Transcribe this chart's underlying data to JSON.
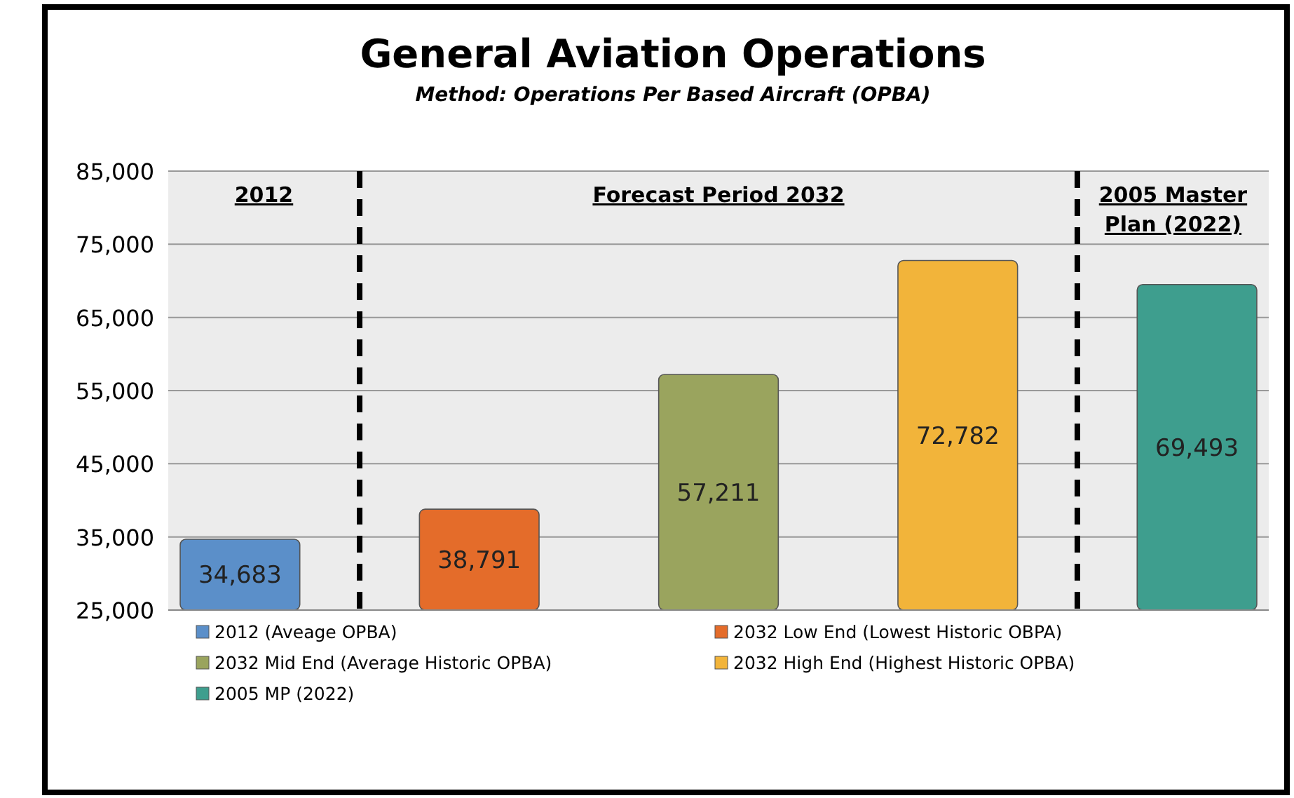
{
  "chart_data": {
    "type": "bar",
    "title": "General Aviation Operations",
    "subtitle": "Method: Operations Per Based Aircraft (OPBA)",
    "categories": [
      null,
      null,
      null,
      null,
      null
    ],
    "series": [
      {
        "name": "2012 (Aveage OPBA)",
        "color": "#5b8fc9",
        "values": [
          34683,
          null,
          null,
          null,
          null
        ],
        "value_labels": [
          "34,683",
          null,
          null,
          null,
          null
        ]
      },
      {
        "name": "2032 Low End (Lowest Historic OBPA)",
        "color": "#e46c2a",
        "values": [
          null,
          38791,
          null,
          null,
          null
        ],
        "value_labels": [
          null,
          "38,791",
          null,
          null,
          null
        ]
      },
      {
        "name": "2032 Mid End (Average Historic OPBA)",
        "color": "#9aa45e",
        "values": [
          null,
          null,
          57211,
          null,
          null
        ],
        "value_labels": [
          null,
          null,
          "57,211",
          null,
          null
        ]
      },
      {
        "name": "2032 High End (Highest Historic OPBA)",
        "color": "#f2b43a",
        "values": [
          null,
          null,
          null,
          72782,
          null
        ],
        "value_labels": [
          null,
          null,
          null,
          "72,782",
          null
        ]
      },
      {
        "name": "2005 MP (2022)",
        "color": "#3e9e8e",
        "values": [
          null,
          null,
          null,
          null,
          69493
        ],
        "value_labels": [
          null,
          null,
          null,
          null,
          "69,493"
        ]
      }
    ],
    "ylim": [
      25000,
      85000
    ],
    "yticks": [
      {
        "value": 25000,
        "label": "25,000"
      },
      {
        "value": 35000,
        "label": "35,000"
      },
      {
        "value": 45000,
        "label": "45,000"
      },
      {
        "value": 55000,
        "label": "55,000"
      },
      {
        "value": 65000,
        "label": "65,000"
      },
      {
        "value": 75000,
        "label": "75,000"
      },
      {
        "value": 85000,
        "label": "85,000"
      }
    ],
    "grid": "y",
    "legend": "bottom",
    "annotations": [
      "2012",
      "Forecast Period 2032",
      "2005 Master Plan (2022)"
    ]
  }
}
